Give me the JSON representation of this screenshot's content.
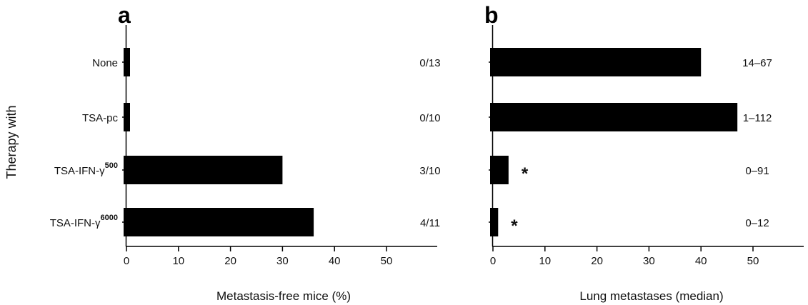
{
  "chart_data": [
    {
      "type": "bar",
      "orientation": "horizontal",
      "panel_label": "a",
      "ylabel": "Therapy with",
      "xlabel": "Metastasis-free mice (%)",
      "xlim": [
        0,
        50
      ],
      "xticks": [
        0,
        10,
        20,
        30,
        40,
        50
      ],
      "categories": [
        {
          "base": "None",
          "sup": ""
        },
        {
          "base": "TSA-pc",
          "sup": ""
        },
        {
          "base": "TSA-IFN-γ",
          "sup": "500"
        },
        {
          "base": "TSA-IFN-γ",
          "sup": "6000"
        }
      ],
      "values": [
        0,
        0,
        30,
        36
      ],
      "annotations": [
        "0/13",
        "0/10",
        "3/10",
        "4/11"
      ],
      "markers": [
        "",
        "",
        "",
        ""
      ]
    },
    {
      "type": "bar",
      "orientation": "horizontal",
      "panel_label": "b",
      "xlabel": "Lung metastases (median)",
      "xlim": [
        0,
        50
      ],
      "xticks": [
        0,
        10,
        20,
        30,
        40,
        50
      ],
      "values": [
        40,
        47,
        3,
        1
      ],
      "annotations": [
        "14–67",
        "1–112",
        "0–91",
        "0–12"
      ],
      "markers": [
        "",
        "",
        "*",
        "*"
      ]
    }
  ]
}
